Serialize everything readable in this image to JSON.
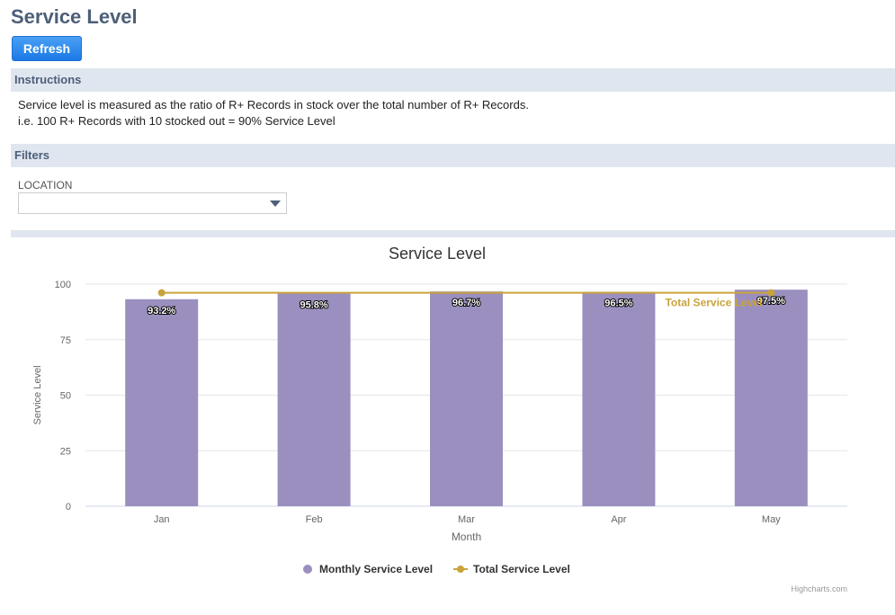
{
  "page": {
    "title": "Service Level",
    "refresh_label": "Refresh"
  },
  "instructions": {
    "header": "Instructions",
    "line1": "Service level is measured as the ratio of R+ Records in stock over the total number of R+ Records.",
    "line2": "i.e. 100 R+ Records with 10 stocked out = 90% Service Level"
  },
  "filters": {
    "header": "Filters",
    "location_label": "LOCATION",
    "location_value": ""
  },
  "chart_data": {
    "type": "bar",
    "title": "Service Level",
    "xlabel": "Month",
    "ylabel": "Service Level",
    "categories": [
      "Jan",
      "Feb",
      "Mar",
      "Apr",
      "May"
    ],
    "ylim": [
      0,
      100
    ],
    "yticks": [
      0,
      25,
      50,
      75,
      100
    ],
    "series": [
      {
        "name": "Monthly Service Level",
        "type": "bar",
        "values": [
          93.2,
          95.8,
          96.7,
          96.5,
          97.5
        ],
        "labels": [
          "93.2%",
          "95.8%",
          "96.7%",
          "96.5%",
          "97.5%"
        ],
        "color": "#9b8fbf"
      },
      {
        "name": "Total Service Level",
        "type": "line",
        "values": [
          96.1,
          96.1
        ],
        "x": [
          "Jan",
          "May"
        ],
        "color": "#c9a33b",
        "label": "Total Service Level"
      }
    ],
    "grid": true,
    "legend": "bottom-center"
  },
  "credits": "Highcharts.com"
}
